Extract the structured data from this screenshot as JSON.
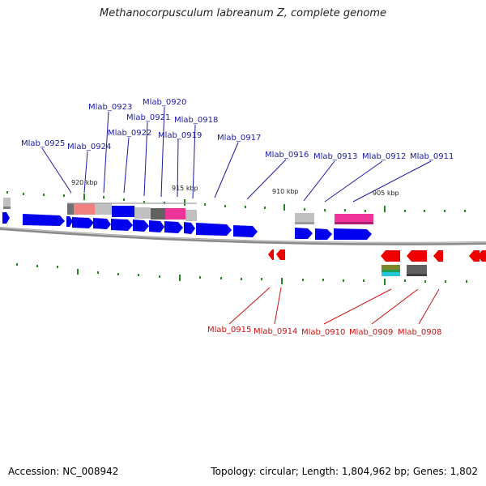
{
  "title": "Methanocorpusculum labreanum Z, complete genome",
  "footer": {
    "accession": "Accession: NC_008942",
    "summary": "Topology: circular; Length: 1,804,962 bp; Genes: 1,802"
  },
  "colors": {
    "forward_gene": "#0000ee",
    "reverse_gene": "#ee0000",
    "forward_label": "#1a1aa6",
    "reverse_label": "#cc1111",
    "tick": "#1f8a1f",
    "backbone": "#8a8a8a",
    "pink": "#ee3399",
    "salmon": "#f08080",
    "light_gray": "#c0c0c0",
    "dark_gray": "#606060",
    "olive": "#7a8a2a",
    "cyan": "#20c8d8"
  },
  "scale_labels": [
    "920 kbp",
    "915 kbp",
    "910 kbp",
    "905 kbp"
  ],
  "forward_labels": [
    "Mlab_0925",
    "Mlab_0924",
    "Mlab_0923",
    "Mlab_0922",
    "Mlab_0921",
    "Mlab_0920",
    "Mlab_0919",
    "Mlab_0918",
    "Mlab_0917",
    "Mlab_0916",
    "Mlab_0913",
    "Mlab_0912",
    "Mlab_0911"
  ],
  "reverse_labels": [
    "Mlab_0915",
    "Mlab_0914",
    "Mlab_0910",
    "Mlab_0909",
    "Mlab_0908"
  ]
}
